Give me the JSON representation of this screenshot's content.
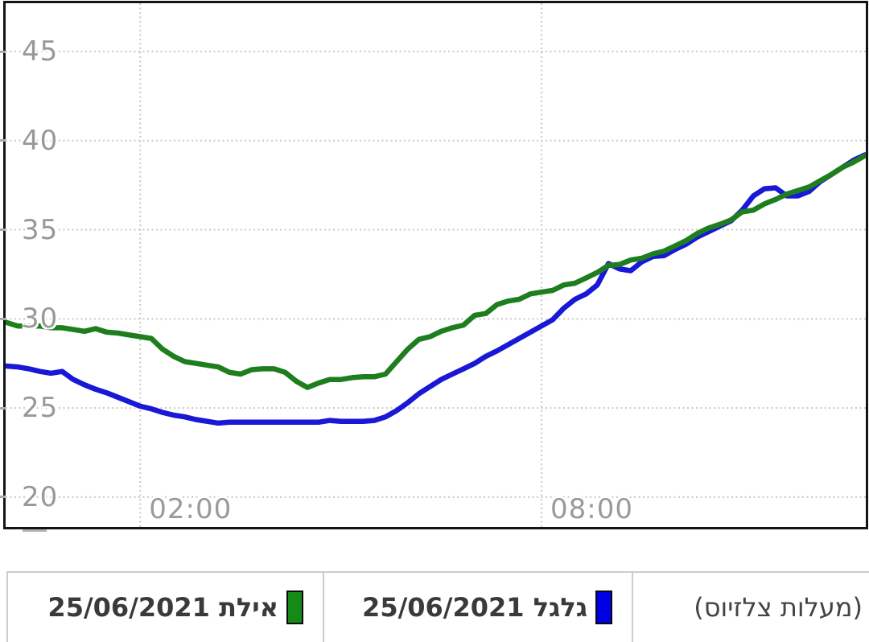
{
  "chart_data": {
    "type": "line",
    "title": "",
    "xlabel": "",
    "ylabel": "(מעלות צלזיוס)",
    "grid": "dotted",
    "legend_position": "bottom",
    "x_axis": {
      "start_time": "00:00",
      "step_minutes": 10,
      "end_time": "12:50",
      "tick_labels": [
        "02:00",
        "08:00"
      ],
      "tick_hours": [
        2,
        8
      ]
    },
    "y_axis": {
      "tick_values": [
        45,
        40,
        35,
        30,
        25,
        20
      ],
      "min": 18.3,
      "max": 47.7,
      "unit": "°C"
    },
    "series": [
      {
        "name": "גלגל 25/06/2021",
        "color": "#1818d6",
        "values": [
          27.35,
          27.3,
          27.2,
          27.05,
          26.95,
          27.05,
          26.6,
          26.3,
          26.05,
          25.85,
          25.6,
          25.35,
          25.1,
          24.95,
          24.75,
          24.6,
          24.5,
          24.35,
          24.25,
          24.15,
          24.2,
          24.2,
          24.2,
          24.2,
          24.2,
          24.2,
          24.2,
          24.2,
          24.2,
          24.3,
          24.25,
          24.25,
          24.25,
          24.3,
          24.5,
          24.85,
          25.3,
          25.8,
          26.2,
          26.6,
          26.9,
          27.2,
          27.5,
          27.9,
          28.2,
          28.55,
          28.9,
          29.25,
          29.6,
          29.95,
          30.6,
          31.1,
          31.4,
          31.9,
          33.1,
          32.8,
          32.7,
          33.2,
          33.5,
          33.55,
          33.9,
          34.2,
          34.6,
          34.9,
          35.2,
          35.5,
          36.1,
          36.9,
          37.3,
          37.35,
          36.9,
          36.9,
          37.15,
          37.7,
          38.1,
          38.5,
          38.9,
          39.2
        ]
      },
      {
        "name": "אילת 25/06/2021",
        "color": "#1e7e1e",
        "values": [
          29.8,
          29.6,
          29.6,
          29.6,
          29.5,
          29.5,
          29.4,
          29.3,
          29.45,
          29.25,
          29.2,
          29.1,
          29.0,
          28.9,
          28.3,
          27.9,
          27.6,
          27.5,
          27.4,
          27.3,
          27.0,
          26.9,
          27.15,
          27.2,
          27.2,
          27.0,
          26.5,
          26.15,
          26.4,
          26.6,
          26.6,
          26.7,
          26.75,
          26.75,
          26.9,
          27.6,
          28.3,
          28.85,
          29.0,
          29.3,
          29.5,
          29.65,
          30.2,
          30.3,
          30.8,
          31.0,
          31.1,
          31.4,
          31.5,
          31.6,
          31.9,
          32.0,
          32.3,
          32.6,
          33.0,
          33.05,
          33.3,
          33.4,
          33.65,
          33.8,
          34.1,
          34.4,
          34.8,
          35.1,
          35.3,
          35.55,
          36.0,
          36.1,
          36.45,
          36.7,
          37.0,
          37.2,
          37.4,
          37.75,
          38.1,
          38.5,
          38.8,
          39.15
        ]
      }
    ]
  },
  "legend": {
    "cells": [
      {
        "label": "אילת 25/06/2021",
        "swatch_color": "#168a16"
      },
      {
        "label": "גלגל 25/06/2021",
        "swatch_color": "#0000e6"
      },
      {
        "label": "(מעלות צלזיוס)"
      }
    ]
  },
  "colors": {
    "grid": "#c8c8c8",
    "axis_text": "#999999",
    "chart_border": "#141414",
    "legend_border": "#cccccc",
    "eilat_line": "#1e7e1e",
    "galgal_line": "#1818d6"
  }
}
